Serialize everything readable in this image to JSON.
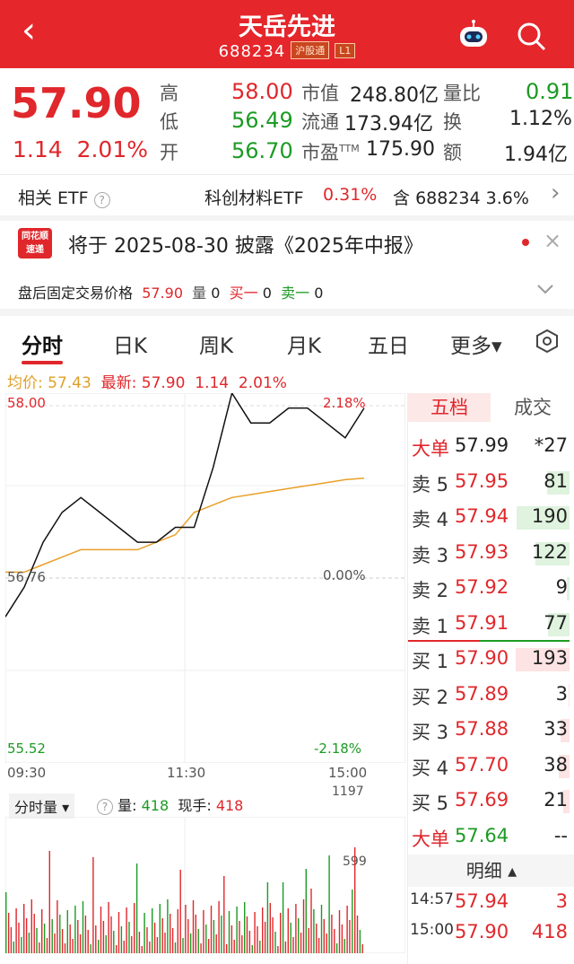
{
  "header": {
    "back": "‹",
    "title": "天岳先进",
    "code": "688234",
    "tag1": "沪股通",
    "tag2": "L1"
  },
  "quote": {
    "price": "57.90",
    "change": "1.14",
    "pct": "2.01%",
    "high_l": "高",
    "high": "58.00",
    "low_l": "低",
    "low": "56.49",
    "open_l": "开",
    "open": "56.70",
    "mcap_l": "市值",
    "mcap": "248.80亿",
    "float_l": "流通",
    "float": "173.94亿",
    "pe_l": "市盈",
    "pe_sup": "TTM",
    "pe": "175.90",
    "vr_l": "量比",
    "vr": "0.91",
    "turn_l": "换",
    "turn": "1.12%",
    "amt_l": "额",
    "amt": "1.94亿"
  },
  "etf": {
    "label": "相关 ETF",
    "q": "?",
    "name": "科创材料ETF",
    "pct": "0.31%",
    "hold_l": "含",
    "hold_code": "688234",
    "hold_pct": "3.6%",
    "arrow": "›"
  },
  "news": {
    "badge1": "同花顺",
    "badge2": "速递",
    "text": "将于 2025-08-30 披露《2025年中报》"
  },
  "after": {
    "label": "盘后固定交易价格",
    "price": "57.90",
    "vol_l": "量",
    "vol": "0",
    "buy_l": "买一",
    "buy": "0",
    "sell_l": "卖一",
    "sell": "0"
  },
  "tabs": [
    "分时",
    "日K",
    "周K",
    "月K",
    "五日",
    "更多▾"
  ],
  "chart": {
    "avg_l": "均价:",
    "avg": "57.43",
    "new_l": "最新:",
    "new": "57.90",
    "chg": "1.14",
    "pct": "2.01%",
    "top": "58.00",
    "top_pct": "2.18%",
    "mid": "56.76",
    "mid_pct": "0.00%",
    "bot": "55.52",
    "bot_pct": "-2.18%",
    "t1": "09:30",
    "t2": "11:30",
    "t3": "15:00",
    "vol_sel": "分时量 ▾",
    "vol_l": "量:",
    "vol": "418",
    "now_l": "现手:",
    "now": "418",
    "vtop": "1197",
    "vmid": "599"
  },
  "chart_data": {
    "type": "line",
    "ylim": [
      55.52,
      58.0
    ],
    "series": [
      {
        "name": "price",
        "values": [
          56.5,
          56.7,
          57.0,
          57.2,
          57.3,
          57.2,
          57.1,
          57.0,
          57.0,
          57.1,
          57.1,
          57.5,
          58.0,
          57.8,
          57.8,
          57.9,
          57.9,
          57.8,
          57.7,
          57.9
        ]
      },
      {
        "name": "avg",
        "values": [
          56.8,
          56.8,
          56.85,
          56.9,
          56.95,
          56.95,
          56.95,
          56.95,
          57.0,
          57.05,
          57.2,
          57.25,
          57.3,
          57.32,
          57.34,
          57.36,
          57.38,
          57.4,
          57.42,
          57.43
        ]
      }
    ]
  },
  "panel": {
    "tab1": "五档",
    "tab2": "成交",
    "big1_l": "大单",
    "big1": "57.99",
    "big1_v": "*27",
    "sells": [
      {
        "l": "卖 5",
        "p": "57.95",
        "v": "81"
      },
      {
        "l": "卖 4",
        "p": "57.94",
        "v": "190"
      },
      {
        "l": "卖 3",
        "p": "57.93",
        "v": "122"
      },
      {
        "l": "卖 2",
        "p": "57.92",
        "v": "9"
      },
      {
        "l": "卖 1",
        "p": "57.91",
        "v": "77"
      }
    ],
    "buys": [
      {
        "l": "买 1",
        "p": "57.90",
        "v": "193"
      },
      {
        "l": "买 2",
        "p": "57.89",
        "v": "3"
      },
      {
        "l": "买 3",
        "p": "57.88",
        "v": "33"
      },
      {
        "l": "买 4",
        "p": "57.70",
        "v": "38"
      },
      {
        "l": "买 5",
        "p": "57.69",
        "v": "21"
      }
    ],
    "big2_l": "大单",
    "big2": "57.64",
    "big2_v": "--",
    "detail": "明细 ▴",
    "trades": [
      {
        "t": "14:57",
        "p": "57.94",
        "v": "3"
      },
      {
        "t": "15:00",
        "p": "57.90",
        "v": "418"
      }
    ]
  }
}
